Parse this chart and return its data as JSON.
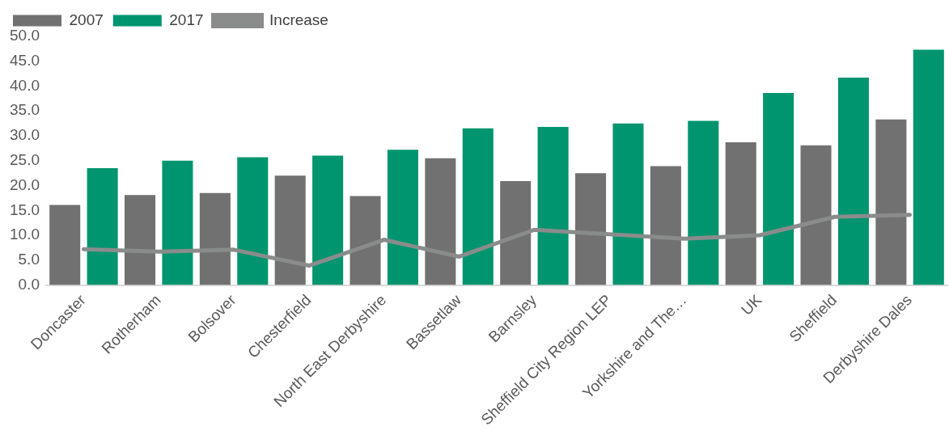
{
  "chart_data": {
    "type": "bar",
    "categories": [
      "Doncaster",
      "Rotherham",
      "Bolsover",
      "Chesterfield",
      "North East Derbyshire",
      "Bassetlaw",
      "Barnsley",
      "Sheffield City Region LEP",
      "Yorkshire and The…",
      "UK",
      "Sheffield",
      "Derbyshire Dales"
    ],
    "series": [
      {
        "name": "2007",
        "color": "#717171",
        "values": [
          16.1,
          18.1,
          18.5,
          22.0,
          17.9,
          25.5,
          20.9,
          22.5,
          23.9,
          28.7,
          28.1,
          33.3
        ]
      },
      {
        "name": "2017",
        "color": "#00956e",
        "values": [
          23.5,
          25.0,
          25.7,
          26.0,
          27.2,
          31.5,
          31.8,
          32.5,
          33.0,
          38.6,
          41.7,
          47.3
        ]
      },
      {
        "name": "Increase",
        "type": "line",
        "color": "#8a8c8c",
        "values": [
          7.2,
          6.7,
          7.1,
          3.9,
          9.1,
          5.7,
          11.1,
          10.2,
          9.3,
          10.0,
          13.7,
          14.1
        ]
      }
    ],
    "ylim": [
      0,
      50
    ],
    "yticks": [
      {
        "value": 0,
        "label": "0.0"
      },
      {
        "value": 5,
        "label": "5.0"
      },
      {
        "value": 10,
        "label": "10.0"
      },
      {
        "value": 15,
        "label": "15.0"
      },
      {
        "value": 20,
        "label": "20.0"
      },
      {
        "value": 25,
        "label": "25.0"
      },
      {
        "value": 30,
        "label": "30.0"
      },
      {
        "value": 35,
        "label": "35.0"
      },
      {
        "value": 40,
        "label": "40.0"
      },
      {
        "value": 45,
        "label": "45.0"
      },
      {
        "value": 50,
        "label": "50.0"
      }
    ],
    "grid": false,
    "legend": "top left",
    "marker": "none",
    "line_style": "solid"
  }
}
